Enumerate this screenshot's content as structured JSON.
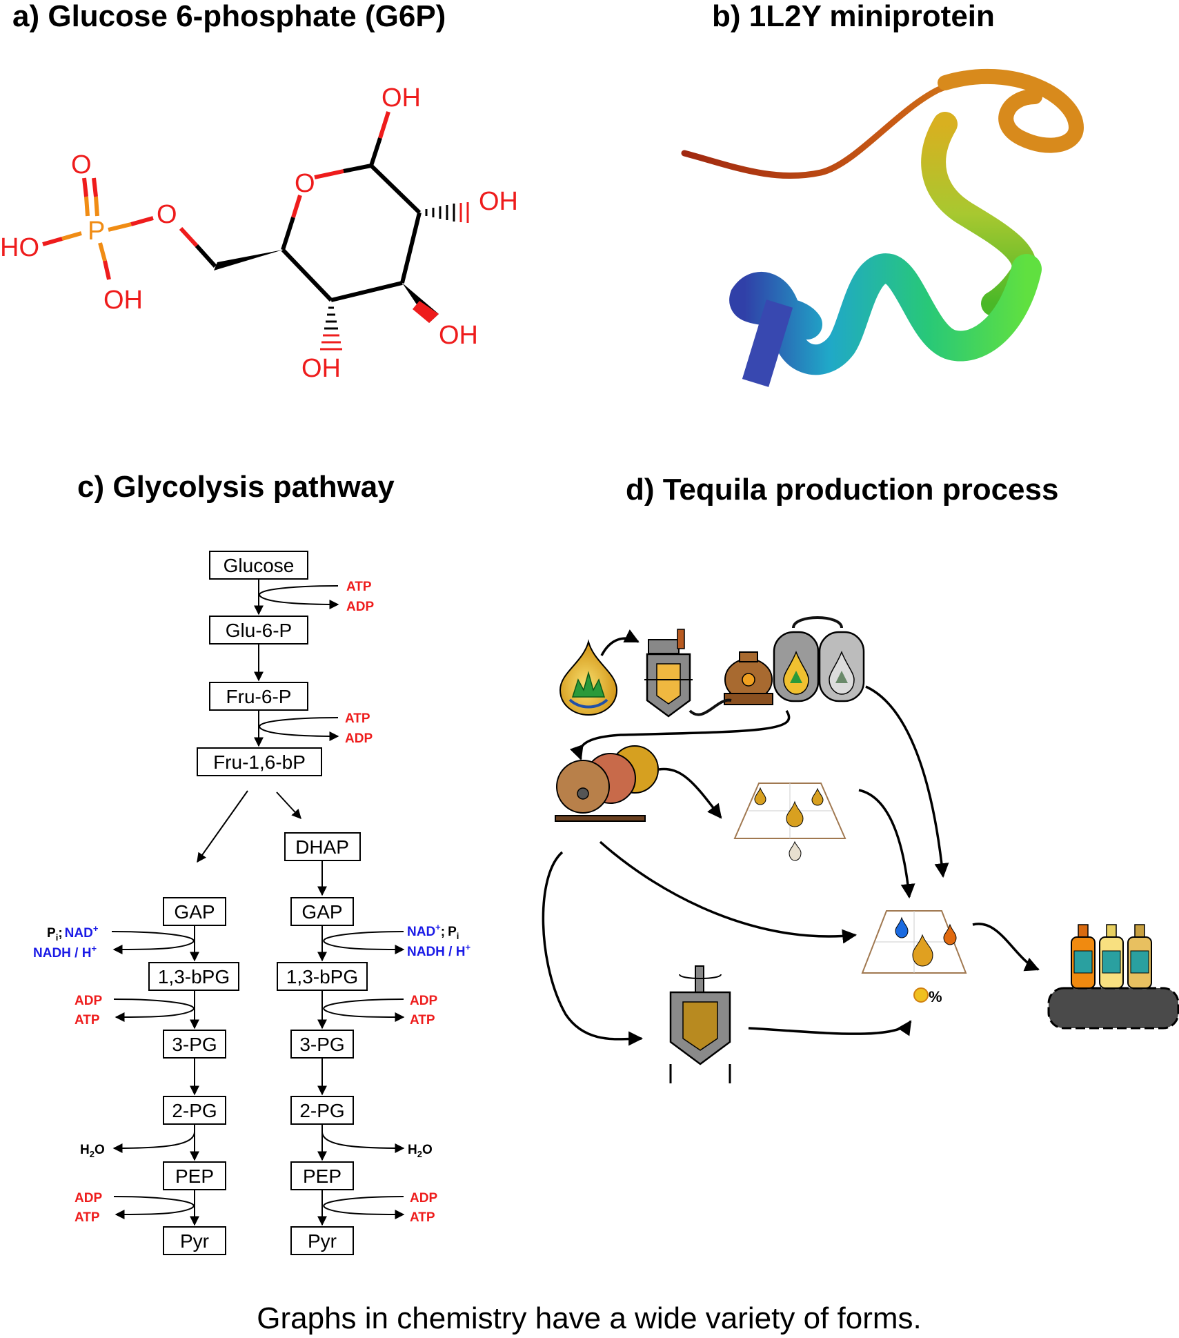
{
  "panels": {
    "a": {
      "title": "a) Glucose 6-phosphate (G6P)"
    },
    "b": {
      "title": "b) 1L2Y miniprotein"
    },
    "c": {
      "title": "c) Glycolysis pathway"
    },
    "d": {
      "title": "d) Tequila production process"
    }
  },
  "molecule": {
    "atoms": {
      "o_double": "O",
      "phosphorus": "P",
      "ho_phosphate": "HO",
      "oh_phosphate": "OH",
      "o_ester": "O",
      "o_ring": "O",
      "oh_c1": "OH",
      "oh_c2": "OH",
      "oh_c3": "OH",
      "oh_c4": "OH"
    }
  },
  "glycolysis": {
    "glucose": "Glucose",
    "glu6p": "Glu-6-P",
    "fru6p": "Fru-6-P",
    "fru16bp": "Fru-1,6-bP",
    "dhap": "DHAP",
    "gap": "GAP",
    "bpg": "1,3-bPG",
    "pg3": "3-PG",
    "pg2": "2-PG",
    "pep": "PEP",
    "pyr": "Pyr",
    "cofactors": {
      "atp": "ATP",
      "adp": "ADP",
      "nad": "NAD",
      "nadh": "NADH / H",
      "pi": "P",
      "pi_sub": "i",
      "plus": "+",
      "sep": ";",
      "h2o_h": "H",
      "h2o_sub": "2",
      "h2o_o": "O"
    }
  },
  "tequila": {
    "percent": "%"
  },
  "caption": "Graphs in chemistry have a wide variety of forms.",
  "colors": {
    "oxygen": "#ee1c1c",
    "phosphorus": "#f08c14",
    "cofactor_red": "#ee1c1c",
    "cofactor_blue": "#1a1ae6"
  }
}
